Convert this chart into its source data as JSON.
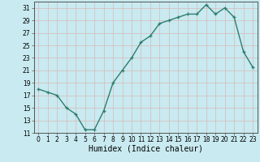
{
  "x": [
    0,
    1,
    2,
    3,
    4,
    5,
    6,
    7,
    8,
    9,
    10,
    11,
    12,
    13,
    14,
    15,
    16,
    17,
    18,
    19,
    20,
    21,
    22,
    23
  ],
  "y": [
    18,
    17.5,
    17,
    15,
    14,
    11.5,
    11.5,
    14.5,
    19,
    21,
    23,
    25.5,
    26.5,
    28.5,
    29,
    29.5,
    30,
    30,
    31.5,
    30,
    31,
    29.5,
    24,
    21.5
  ],
  "line_color": "#2e7d6e",
  "marker": "+",
  "bg_color": "#c8eaf0",
  "grid_color": "#d8b8b8",
  "xlabel": "Humidex (Indice chaleur)",
  "ylim": [
    11,
    32
  ],
  "yticks": [
    11,
    13,
    15,
    17,
    19,
    21,
    23,
    25,
    27,
    29,
    31
  ],
  "xlim": [
    -0.5,
    23.5
  ],
  "xticks": [
    0,
    1,
    2,
    3,
    4,
    5,
    6,
    7,
    8,
    9,
    10,
    11,
    12,
    13,
    14,
    15,
    16,
    17,
    18,
    19,
    20,
    21,
    22,
    23
  ],
  "tick_fontsize": 5.5,
  "xlabel_fontsize": 7,
  "linewidth": 1.0,
  "markersize": 3.5
}
